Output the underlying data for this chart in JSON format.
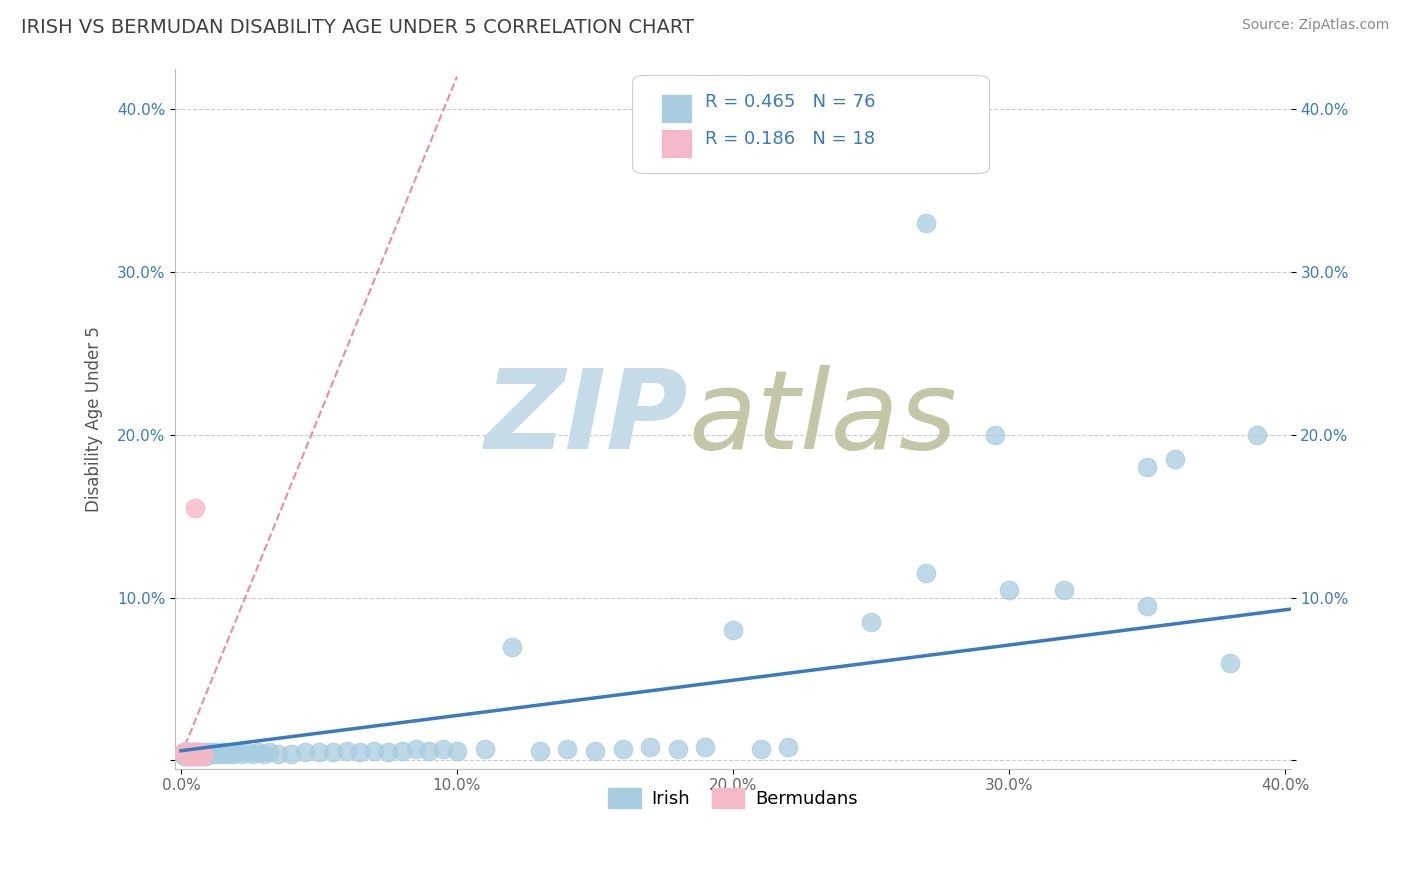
{
  "title": "IRISH VS BERMUDAN DISABILITY AGE UNDER 5 CORRELATION CHART",
  "source": "Source: ZipAtlas.com",
  "ylabel": "Disability Age Under 5",
  "xlim": [
    -0.002,
    0.402
  ],
  "ylim": [
    -0.005,
    0.425
  ],
  "xticks": [
    0.0,
    0.1,
    0.2,
    0.3,
    0.4
  ],
  "yticks": [
    0.0,
    0.1,
    0.2,
    0.3,
    0.4
  ],
  "xtick_labels": [
    "0.0%",
    "10.0%",
    "20.0%",
    "30.0%",
    "40.0%"
  ],
  "ytick_labels": [
    "",
    "10.0%",
    "20.0%",
    "30.0%",
    "40.0%"
  ],
  "irish_R": 0.465,
  "irish_N": 76,
  "bermudan_R": 0.186,
  "bermudan_N": 18,
  "irish_color": "#a8cce0",
  "bermudan_color": "#f4b8c8",
  "trend_color": "#3a7abf",
  "diagonal_color": "#e87a8a",
  "legend_irish_label": "Irish",
  "legend_bermudan_label": "Bermudans",
  "title_color": "#404040",
  "axis_color": "#aaaaaa",
  "grid_color": "#cccccc",
  "tick_color": "#3a7abf",
  "background_color": "#ffffff",
  "legend_text_color": "#3a7abf",
  "legend_label_color": "#333333",
  "watermark_zip_color": "#c5dce8",
  "watermark_atlas_color": "#c5c5a8"
}
